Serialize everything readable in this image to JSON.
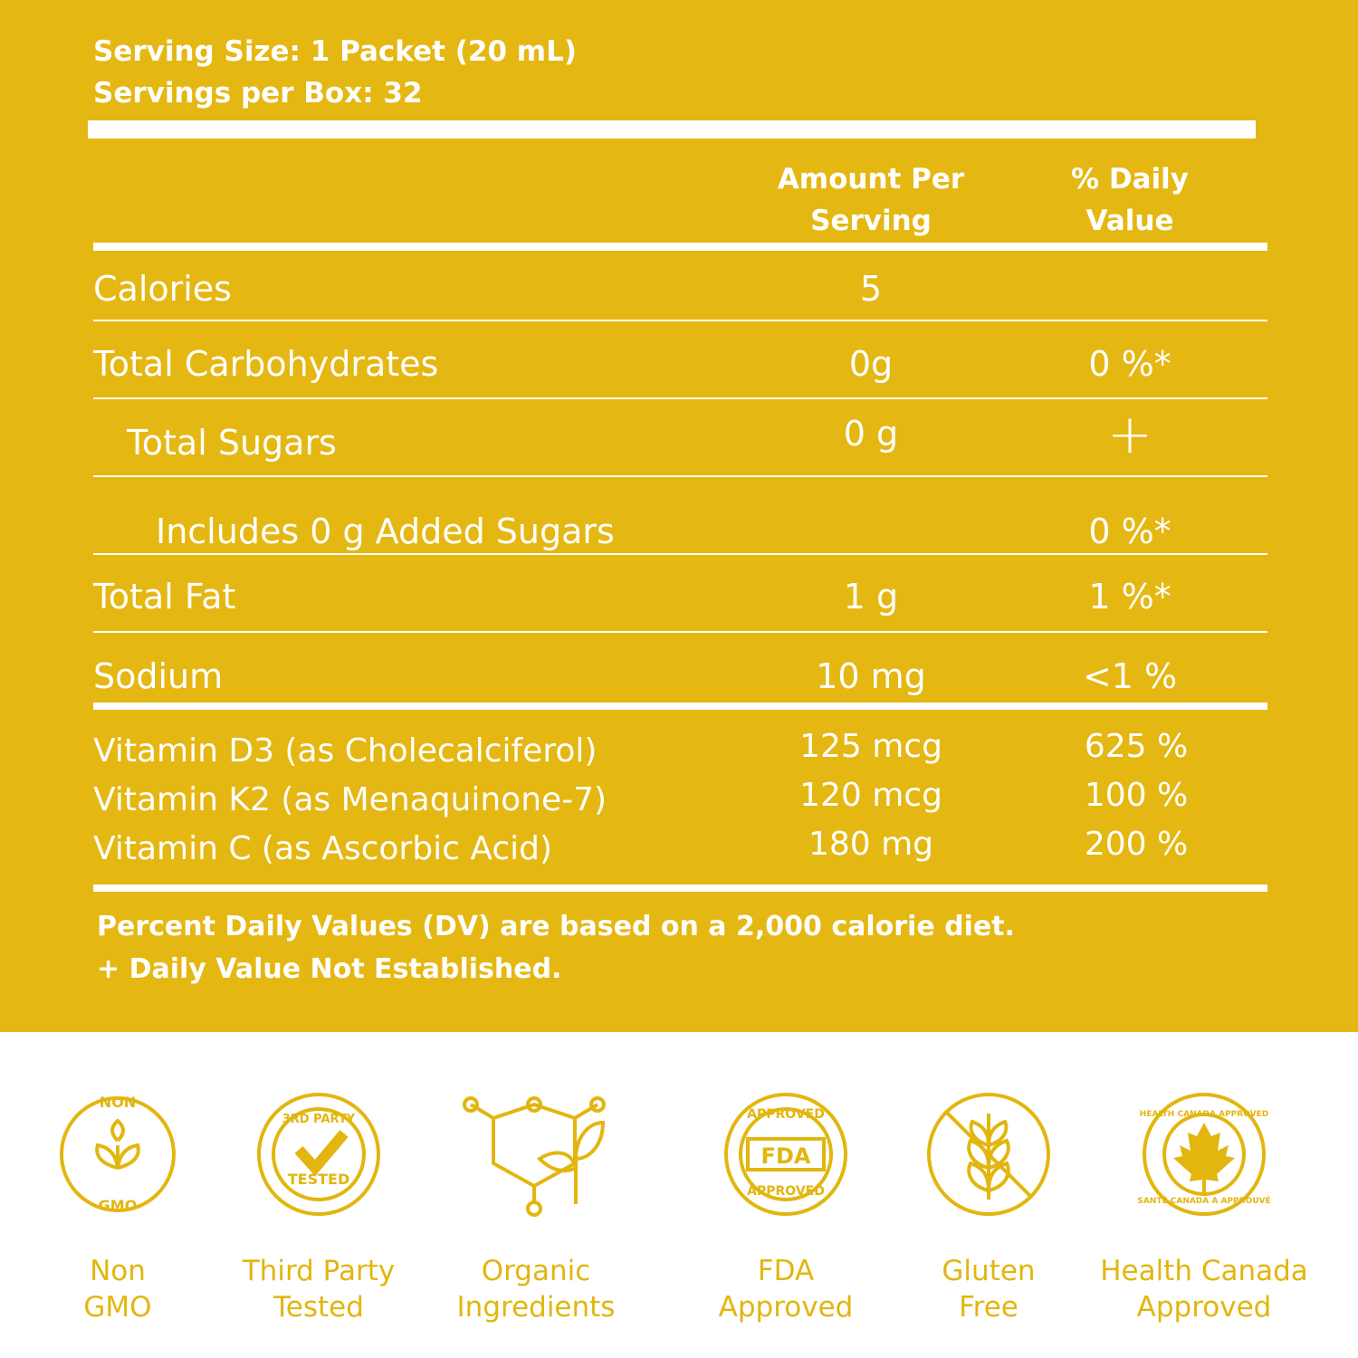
{
  "serving": {
    "size": "Serving Size: 1 Packet (20 mL)",
    "per_box": "Servings per Box: 32"
  },
  "table": {
    "header": {
      "amount": "Amount Per Serving",
      "daily_value": "% Daily Value"
    },
    "rows": [
      {
        "name": "Calories",
        "amount": "5"
      },
      {
        "name": "Total Carbohydrates",
        "amount": "0g",
        "daily_value": "0 %*"
      },
      {
        "name": "Total Sugars",
        "amount": "0 g",
        "daily_value": "+"
      },
      {
        "name": "Includes 0 g Added Sugars",
        "daily_value": "0 %*"
      },
      {
        "name": "Total Fat",
        "amount": "1 g",
        "daily_value": "1 %*"
      },
      {
        "name": "Sodium",
        "amount": "10 mg",
        "daily_value": "<1 %"
      }
    ],
    "vitamins": [
      {
        "name": "Vitamin D3 (as Cholecalciferol)",
        "amount": "125 mcg",
        "daily_value": "625 %"
      },
      {
        "name": "Vitamin K2 (as Menaquinone-7)",
        "amount": "120 mcg",
        "daily_value": "100 %"
      },
      {
        "name": "Vitamin C (as Ascorbic Acid)",
        "amount": "180 mg",
        "daily_value": "200 %"
      }
    ]
  },
  "footnotes": [
    "Percent Daily Values (DV) are based on a 2,000 calorie diet.",
    "+ Daily Value Not Established."
  ],
  "badges": [
    {
      "icon_text": [
        "NON",
        "GMO"
      ],
      "label": [
        "Non",
        "GMO"
      ]
    },
    {
      "icon_text": [
        "3RD PARTY",
        "TESTED"
      ],
      "label": [
        "Third Party",
        "Tested"
      ]
    },
    {
      "label": [
        "Organic",
        "Ingredients"
      ]
    },
    {
      "icon_text": [
        "APPROVED",
        "FDA",
        "APPROVED"
      ],
      "label": [
        "FDA",
        "Approved"
      ]
    },
    {
      "label": [
        "Gluten",
        "Free"
      ]
    },
    {
      "icon_text": [
        "HEALTH CANADA APPROVED",
        "SANTÉ CANADA A APPROUVÉ"
      ],
      "label": [
        "Health Canada",
        "Approved"
      ]
    }
  ]
}
